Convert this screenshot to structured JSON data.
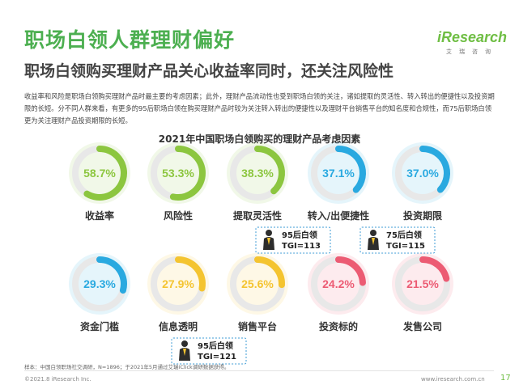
{
  "header": {
    "title": "职场白领人群理财偏好",
    "subtitle": "职场白领购买理财产品关心收益率同时，还关注风险性"
  },
  "logo": {
    "main": "iResearch",
    "sub": "艾瑞咨询"
  },
  "description": "收益率和风险是职场白领购买理财产品时最主要的考虑因素；此外，理财产品流动性也受到职场白领的关注，诸如提取的灵活性、转入转出的便捷性以及投资期限的长短。分不同人群来看，有更多的95后职场白领在购买理财产品时较为关注转入转出的便捷性以及理财平台销售平台的知名度和合规性，而75后职场白领更为关注理财产品投资期限的长短。",
  "chart_data": {
    "type": "donut",
    "title": "2021年中国职场白领购买的理财产品考虑因素",
    "unit": "%",
    "categories": [
      "收益率",
      "风险性",
      "提取灵活性",
      "转入/出便捷性",
      "投资期限",
      "资金门槛",
      "信息透明",
      "销售平台",
      "投资标的",
      "发售公司"
    ],
    "values": [
      58.7,
      53.3,
      38.3,
      37.1,
      37.0,
      29.3,
      27.9,
      25.6,
      24.2,
      21.5
    ],
    "value_labels": [
      "58.7%",
      "53.3%",
      "38.3%",
      "37.1%",
      "37.0%",
      "29.3%",
      "27.9%",
      "25.6%",
      "24.2%",
      "21.5%"
    ],
    "colors": [
      "#8cc63f",
      "#8cc63f",
      "#8cc63f",
      "#29a9e0",
      "#29a9e0",
      "#29a9e0",
      "#f4c430",
      "#f4c430",
      "#ec5b73",
      "#ec5b73"
    ],
    "callouts": [
      {
        "between": [
          2,
          3
        ],
        "group": "95后白领",
        "tgi": "TGI=113"
      },
      {
        "between": [
          3,
          4
        ],
        "group": "75后白领",
        "tgi": "TGI=115"
      },
      {
        "between": [
          6,
          7
        ],
        "group": "95后白领",
        "tgi": "TGI=121"
      }
    ]
  },
  "source": "样本：中国白领职场社交调研，N=1896；于2021年5月通过艾瑞iClick调研数据获得。",
  "footer": {
    "copyright": "©2021.8 iResearch Inc.",
    "website": "www.iresearch.com.cn",
    "page": "17"
  }
}
